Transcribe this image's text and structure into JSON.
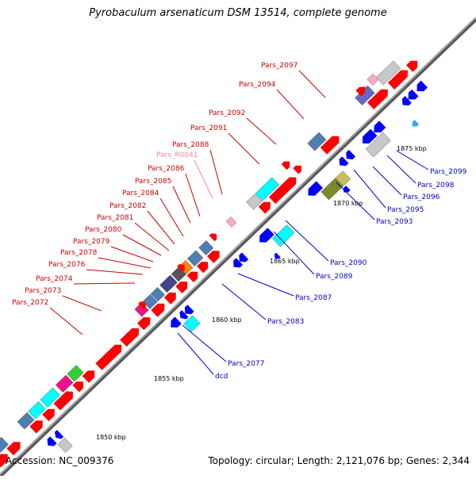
{
  "header": {
    "title": "Pyrobaculum arsenaticum DSM 13514, complete genome"
  },
  "footer": {
    "accession": "Accession: NC_009376",
    "summary": "Topology: circular; Length: 2,121,076 bp; Genes: 2,344"
  },
  "scale_ticks": [
    "1850 kbp",
    "1855 kbp",
    "1860 kbp",
    "1865 kbp",
    "1870 kbp",
    "1875 kbp"
  ],
  "gene_labels_top": [
    {
      "text": "Pars_2097",
      "color": "#cc0000"
    },
    {
      "text": "Pars_2094",
      "color": "#cc0000"
    },
    {
      "text": "Pars_2092",
      "color": "#cc0000"
    },
    {
      "text": "Pars_2091",
      "color": "#cc0000"
    },
    {
      "text": "Pars_2088",
      "color": "#cc0000"
    },
    {
      "text": "Pars_R0041",
      "color": "#ee88aa"
    },
    {
      "text": "Pars_2086",
      "color": "#cc0000"
    },
    {
      "text": "Pars_2085",
      "color": "#cc0000"
    },
    {
      "text": "Pars_2084",
      "color": "#cc0000"
    },
    {
      "text": "Pars_2082",
      "color": "#cc0000"
    },
    {
      "text": "Pars_2081",
      "color": "#cc0000"
    },
    {
      "text": "Pars_2080",
      "color": "#cc0000"
    },
    {
      "text": "Pars_2079",
      "color": "#cc0000"
    },
    {
      "text": "Pars_2078",
      "color": "#cc0000"
    },
    {
      "text": "Pars_2076",
      "color": "#cc0000"
    },
    {
      "text": "Pars_2074",
      "color": "#cc0000"
    },
    {
      "text": "Pars_2073",
      "color": "#cc0000"
    },
    {
      "text": "Pars_2072",
      "color": "#cc0000"
    }
  ],
  "gene_labels_bottom": [
    {
      "text": "Pars_2099",
      "color": "#0000cc"
    },
    {
      "text": "Pars_2098",
      "color": "#0000cc"
    },
    {
      "text": "Pars_2096",
      "color": "#0000cc"
    },
    {
      "text": "Pars_2095",
      "color": "#0000cc"
    },
    {
      "text": "Pars_2093",
      "color": "#0000cc"
    },
    {
      "text": "Pars_2090",
      "color": "#0000cc"
    },
    {
      "text": "Pars_2089",
      "color": "#0000cc"
    },
    {
      "text": "Pars_2087",
      "color": "#0000cc"
    },
    {
      "text": "Pars_2083",
      "color": "#0000cc"
    },
    {
      "text": "Pars_2077",
      "color": "#0000cc"
    },
    {
      "text": "dcd",
      "color": "#0000cc"
    }
  ],
  "colors": {
    "backbone": "#888888",
    "forward_gene": "#ff0000",
    "reverse_gene": "#0000ff",
    "tick": "#228822",
    "rna": "#ffaacc"
  }
}
